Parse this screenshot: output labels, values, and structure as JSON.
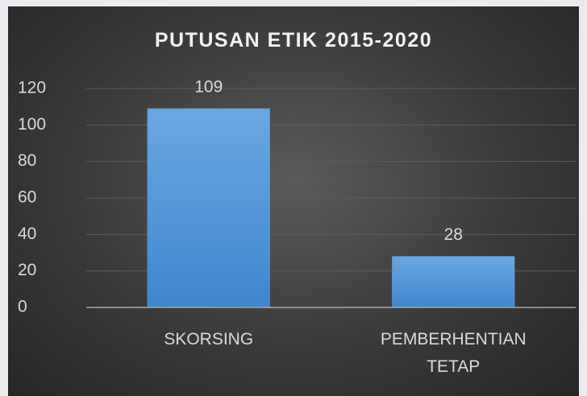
{
  "chart_data": {
    "type": "bar",
    "title": "PUTUSAN ETIK 2015-2020",
    "categories": [
      "SKORSING",
      "PEMBERHENTIAN TETAP"
    ],
    "values": [
      109,
      28
    ],
    "color": "#5b9bd5",
    "ylim": [
      0,
      120
    ],
    "yticks": [
      0,
      20,
      40,
      60,
      80,
      100,
      120
    ],
    "grid": true
  }
}
